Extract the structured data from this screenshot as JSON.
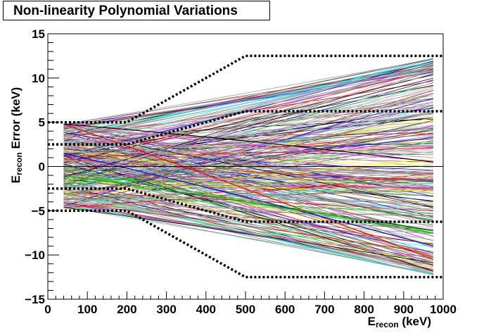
{
  "chart_data": {
    "type": "line",
    "title": "Non-linearity Polynomial Variations",
    "xlabel": {
      "base": "E",
      "sub": "recon",
      "rest": " (keV)"
    },
    "ylabel": {
      "base": "E",
      "sub": "recon",
      "rest": " Error (keV)"
    },
    "xlim": [
      0,
      1000
    ],
    "ylim": [
      -15,
      15
    ],
    "xticks": [
      "0",
      "100",
      "200",
      "300",
      "400",
      "500",
      "600",
      "700",
      "800",
      "900",
      "1000"
    ],
    "yticks": [
      "−15",
      "−10",
      "−5",
      "0",
      "5",
      "10",
      "15"
    ],
    "grid": false,
    "zero_line": true,
    "x_range_of_curves": [
      40,
      975
    ],
    "envelopes": [
      {
        "name": "outer",
        "x": [
          0,
          200,
          500,
          1000
        ],
        "upper": [
          5,
          5,
          12.5,
          12.5
        ],
        "lower": [
          -5,
          -5,
          -12.5,
          -12.5
        ]
      },
      {
        "name": "inner",
        "x": [
          0,
          200,
          500,
          1000
        ],
        "upper": [
          2.5,
          2.5,
          6.25,
          6.25
        ],
        "lower": [
          -2.5,
          -2.5,
          -6.25,
          -6.25
        ]
      }
    ],
    "highlighted_curves": [
      {
        "color": "#ff0000",
        "x": [
          40,
          975
        ],
        "y": [
          4.8,
          -10.5
        ]
      },
      {
        "color": "#0000ff",
        "x": [
          40,
          975
        ],
        "y": [
          1.5,
          -9.0
        ]
      },
      {
        "color": "#000000",
        "x": [
          40,
          975
        ],
        "y": [
          4.8,
          0.5
        ]
      },
      {
        "color": "#00b000",
        "x": [
          40,
          975
        ],
        "y": [
          -1.0,
          -7.5
        ]
      }
    ],
    "curve_colors": [
      "#a0a0a0",
      "#8c8c8c",
      "#b4b4b4",
      "#ff00ff",
      "#00ffff",
      "#00cc00",
      "#ff0000",
      "#0000ff",
      "#ffff00",
      "#000000",
      "#a05050",
      "#505050"
    ],
    "curve_count": 300
  }
}
